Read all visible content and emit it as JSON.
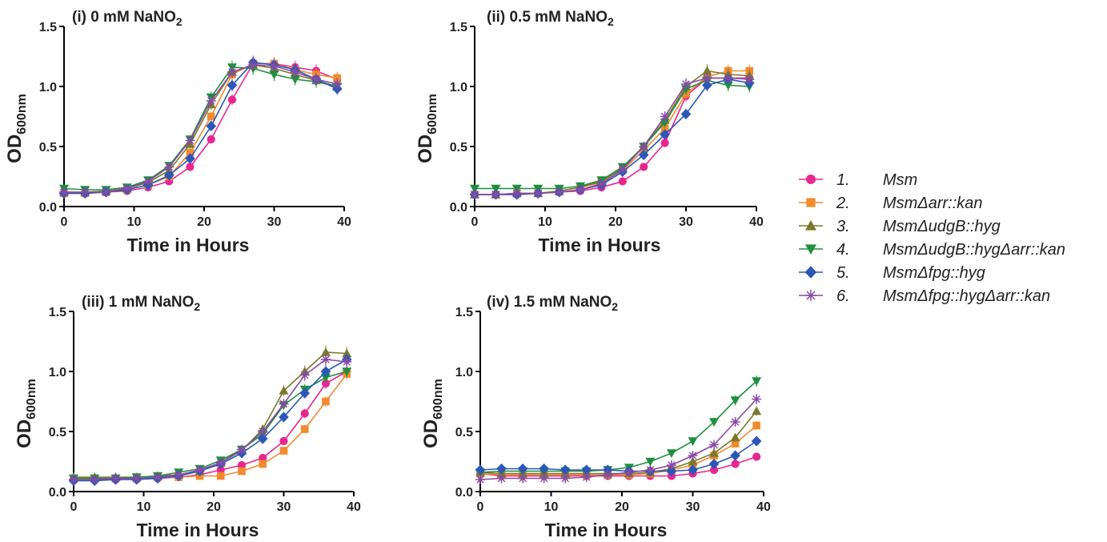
{
  "chart_data": [
    {
      "type": "line",
      "title": "(i) 0 mM NaNO",
      "title_sub": "2",
      "xlabel": "Time in Hours",
      "ylabel": "OD",
      "ylabel_sub": "600nm",
      "xlim": [
        0,
        40
      ],
      "ylim": [
        0,
        1.5
      ],
      "xticks": [
        "0",
        "10",
        "20",
        "30",
        "40"
      ],
      "yticks": [
        "0.0",
        "0.5",
        "1.0",
        "1.5"
      ],
      "x": [
        0,
        3,
        6,
        9,
        12,
        15,
        18,
        21,
        24,
        27,
        30,
        33,
        36,
        39
      ],
      "series": [
        {
          "id": 1,
          "values": [
            0.11,
            0.11,
            0.12,
            0.13,
            0.16,
            0.21,
            0.33,
            0.56,
            0.89,
            1.19,
            1.19,
            1.16,
            1.13,
            1.06
          ]
        },
        {
          "id": 2,
          "values": [
            0.11,
            0.11,
            0.12,
            0.14,
            0.18,
            0.25,
            0.45,
            0.75,
            1.1,
            1.19,
            1.19,
            1.14,
            1.1,
            1.07
          ]
        },
        {
          "id": 3,
          "values": [
            0.12,
            0.12,
            0.13,
            0.15,
            0.2,
            0.3,
            0.52,
            0.85,
            1.12,
            1.18,
            1.15,
            1.1,
            1.05,
            1.0
          ]
        },
        {
          "id": 4,
          "values": [
            0.15,
            0.14,
            0.14,
            0.16,
            0.22,
            0.34,
            0.56,
            0.91,
            1.16,
            1.15,
            1.1,
            1.06,
            1.04,
            1.0
          ]
        },
        {
          "id": 5,
          "values": [
            0.11,
            0.11,
            0.12,
            0.14,
            0.18,
            0.26,
            0.4,
            0.67,
            1.01,
            1.2,
            1.18,
            1.14,
            1.06,
            0.98
          ]
        },
        {
          "id": 6,
          "values": [
            0.12,
            0.12,
            0.12,
            0.15,
            0.21,
            0.33,
            0.55,
            0.88,
            1.12,
            1.18,
            1.17,
            1.12,
            1.06,
            1.02
          ]
        }
      ]
    },
    {
      "type": "line",
      "title": "(ii) 0.5 mM NaNO",
      "title_sub": "2",
      "xlabel": "Time in Hours",
      "ylabel": "OD",
      "ylabel_sub": "600nm",
      "xlim": [
        0,
        40
      ],
      "ylim": [
        0,
        1.5
      ],
      "xticks": [
        "0",
        "10",
        "20",
        "30",
        "40"
      ],
      "yticks": [
        "0.0",
        "0.5",
        "1.0",
        "1.5"
      ],
      "x": [
        0,
        3,
        6,
        9,
        12,
        15,
        18,
        21,
        24,
        27,
        30,
        33,
        36,
        39
      ],
      "series": [
        {
          "id": 1,
          "values": [
            0.1,
            0.1,
            0.1,
            0.11,
            0.12,
            0.13,
            0.16,
            0.21,
            0.33,
            0.53,
            0.92,
            1.07,
            1.07,
            1.07
          ]
        },
        {
          "id": 2,
          "values": [
            0.1,
            0.1,
            0.11,
            0.11,
            0.13,
            0.16,
            0.2,
            0.3,
            0.47,
            0.65,
            0.94,
            1.08,
            1.13,
            1.13
          ]
        },
        {
          "id": 3,
          "values": [
            0.1,
            0.1,
            0.11,
            0.11,
            0.13,
            0.16,
            0.21,
            0.32,
            0.5,
            0.72,
            1.0,
            1.13,
            1.1,
            1.09
          ]
        },
        {
          "id": 4,
          "values": [
            0.15,
            0.15,
            0.15,
            0.15,
            0.15,
            0.17,
            0.22,
            0.33,
            0.5,
            0.7,
            0.98,
            1.05,
            1.01,
            1.0
          ]
        },
        {
          "id": 5,
          "values": [
            0.1,
            0.1,
            0.1,
            0.11,
            0.12,
            0.14,
            0.18,
            0.29,
            0.43,
            0.6,
            0.77,
            1.01,
            1.06,
            1.03
          ]
        },
        {
          "id": 6,
          "values": [
            0.1,
            0.1,
            0.11,
            0.11,
            0.12,
            0.14,
            0.19,
            0.31,
            0.5,
            0.75,
            1.02,
            1.07,
            1.07,
            1.06
          ]
        }
      ]
    },
    {
      "type": "line",
      "title": "(iii) 1 mM NaNO",
      "title_sub": "2",
      "xlabel": "Time in Hours",
      "ylabel": "OD",
      "ylabel_sub": "600nm",
      "xlim": [
        0,
        40
      ],
      "ylim": [
        0,
        1.5
      ],
      "xticks": [
        "0",
        "10",
        "20",
        "30",
        "40"
      ],
      "yticks": [
        "0.0",
        "0.5",
        "1.0",
        "1.5"
      ],
      "x": [
        0,
        3,
        6,
        9,
        12,
        15,
        18,
        21,
        24,
        27,
        30,
        33,
        36,
        39
      ],
      "series": [
        {
          "id": 1,
          "values": [
            0.1,
            0.1,
            0.1,
            0.11,
            0.11,
            0.12,
            0.14,
            0.18,
            0.22,
            0.28,
            0.42,
            0.65,
            0.9,
            1.0
          ]
        },
        {
          "id": 2,
          "values": [
            0.11,
            0.11,
            0.11,
            0.11,
            0.12,
            0.12,
            0.13,
            0.13,
            0.17,
            0.23,
            0.34,
            0.52,
            0.75,
            0.98
          ]
        },
        {
          "id": 3,
          "values": [
            0.12,
            0.12,
            0.12,
            0.12,
            0.13,
            0.14,
            0.17,
            0.24,
            0.34,
            0.52,
            0.84,
            1.0,
            1.16,
            1.15
          ]
        },
        {
          "id": 4,
          "values": [
            0.11,
            0.11,
            0.11,
            0.12,
            0.13,
            0.16,
            0.19,
            0.26,
            0.35,
            0.48,
            0.72,
            0.85,
            0.95,
            1.0
          ]
        },
        {
          "id": 5,
          "values": [
            0.09,
            0.09,
            0.1,
            0.1,
            0.11,
            0.13,
            0.17,
            0.23,
            0.32,
            0.44,
            0.62,
            0.82,
            1.0,
            1.1
          ]
        },
        {
          "id": 6,
          "values": [
            0.1,
            0.1,
            0.11,
            0.11,
            0.12,
            0.14,
            0.18,
            0.24,
            0.35,
            0.5,
            0.73,
            0.97,
            1.1,
            1.08
          ]
        }
      ]
    },
    {
      "type": "line",
      "title": "(iv) 1.5 mM NaNO",
      "title_sub": "2",
      "xlabel": "Time in Hours",
      "ylabel": "OD",
      "ylabel_sub": "600nm",
      "xlim": [
        0,
        40
      ],
      "ylim": [
        0,
        1.5
      ],
      "xticks": [
        "0",
        "10",
        "20",
        "30",
        "40"
      ],
      "yticks": [
        "0.0",
        "0.5",
        "1.0",
        "1.5"
      ],
      "x": [
        0,
        3,
        6,
        9,
        12,
        15,
        18,
        21,
        24,
        27,
        30,
        33,
        36,
        39
      ],
      "series": [
        {
          "id": 1,
          "values": [
            0.15,
            0.13,
            0.13,
            0.13,
            0.13,
            0.13,
            0.13,
            0.13,
            0.13,
            0.13,
            0.15,
            0.18,
            0.23,
            0.29
          ]
        },
        {
          "id": 2,
          "values": [
            0.15,
            0.14,
            0.14,
            0.14,
            0.14,
            0.14,
            0.14,
            0.14,
            0.15,
            0.18,
            0.22,
            0.3,
            0.4,
            0.55
          ]
        },
        {
          "id": 3,
          "values": [
            0.16,
            0.15,
            0.15,
            0.15,
            0.15,
            0.15,
            0.15,
            0.15,
            0.16,
            0.19,
            0.25,
            0.32,
            0.45,
            0.67
          ]
        },
        {
          "id": 4,
          "values": [
            0.16,
            0.17,
            0.17,
            0.17,
            0.17,
            0.17,
            0.18,
            0.2,
            0.25,
            0.32,
            0.42,
            0.58,
            0.76,
            0.92
          ]
        },
        {
          "id": 5,
          "values": [
            0.18,
            0.19,
            0.19,
            0.19,
            0.18,
            0.18,
            0.18,
            0.17,
            0.17,
            0.17,
            0.18,
            0.23,
            0.3,
            0.42
          ]
        },
        {
          "id": 6,
          "values": [
            0.1,
            0.11,
            0.11,
            0.11,
            0.11,
            0.12,
            0.14,
            0.16,
            0.18,
            0.22,
            0.3,
            0.39,
            0.58,
            0.77
          ]
        }
      ]
    }
  ],
  "legend": {
    "entries": [
      {
        "num": "1.",
        "name": "Msm",
        "color": "#e8268f",
        "marker": "circle"
      },
      {
        "num": "2.",
        "name": "MsmΔarr::kan",
        "color": "#f28a2e",
        "marker": "square"
      },
      {
        "num": "3.",
        "name": "MsmΔudgB::hyg",
        "color": "#7b7a2c",
        "marker": "triangle-up"
      },
      {
        "num": "4.",
        "name": "MsmΔudgB::hygΔarr::kan",
        "color": "#1e8f3e",
        "marker": "triangle-down"
      },
      {
        "num": "5.",
        "name": "MsmΔfpg::hyg",
        "color": "#2b57b7",
        "marker": "diamond"
      },
      {
        "num": "6.",
        "name": "MsmΔfpg::hygΔarr::kan",
        "color": "#8a4aa6",
        "marker": "asterisk"
      }
    ]
  }
}
